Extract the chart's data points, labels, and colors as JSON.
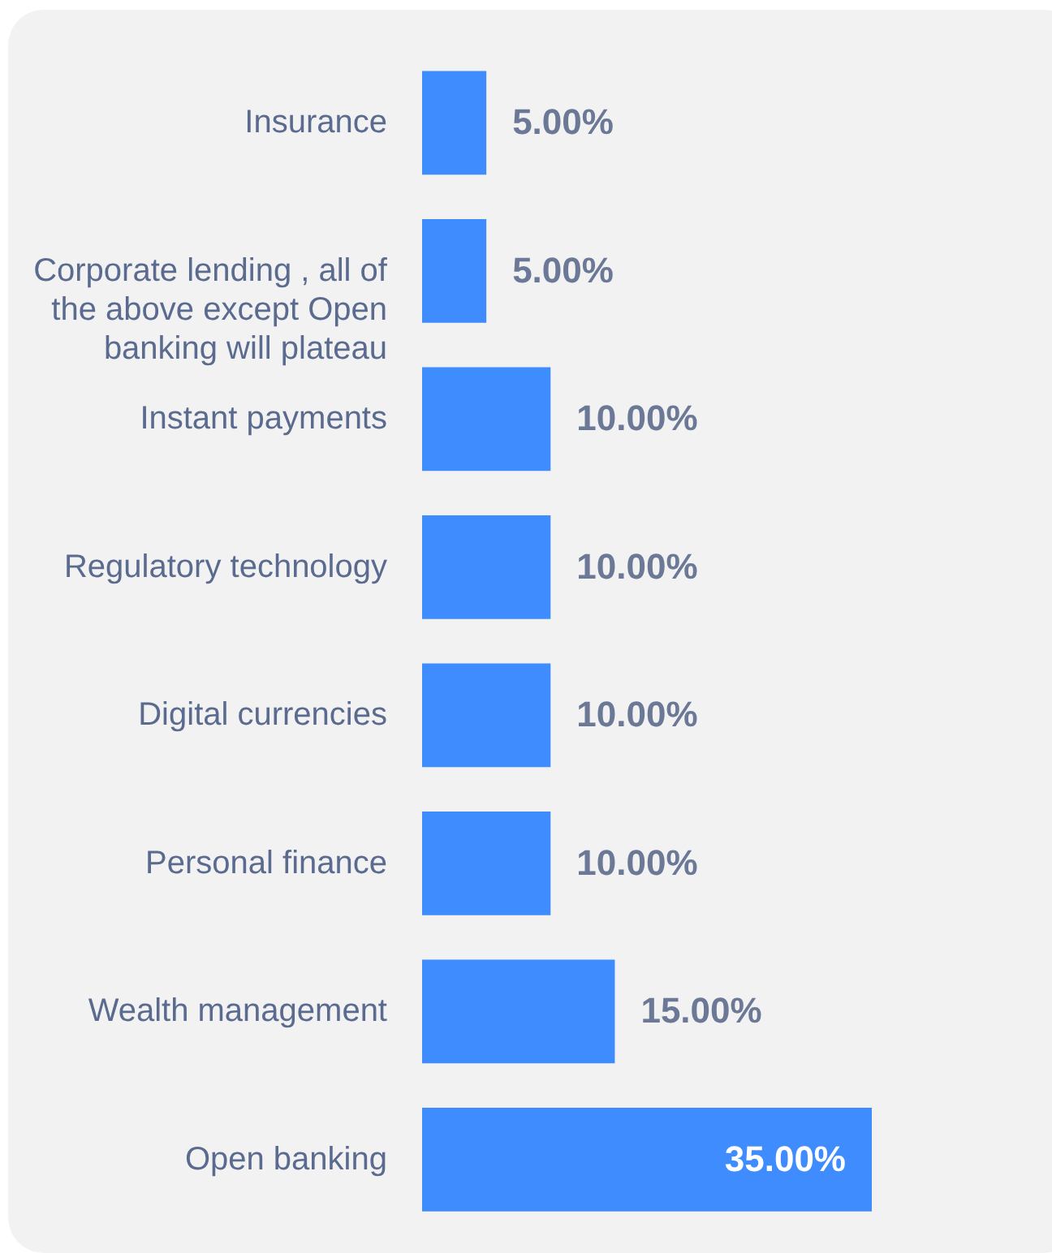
{
  "chart_data": {
    "type": "bar",
    "orientation": "horizontal",
    "categories": [
      "Insurance",
      "Corporate lending , all of the above except Open banking will plateau",
      "Instant payments",
      "Regulatory technology",
      "Digital currencies",
      "Personal finance",
      "Wealth management",
      "Open banking"
    ],
    "values": [
      5,
      5,
      10,
      10,
      10,
      10,
      15,
      35
    ],
    "value_labels": [
      "5.00%",
      "5.00%",
      "10.00%",
      "10.00%",
      "10.00%",
      "10.00%",
      "15.00%",
      "35.00%"
    ],
    "color": "#3f8cff"
  }
}
